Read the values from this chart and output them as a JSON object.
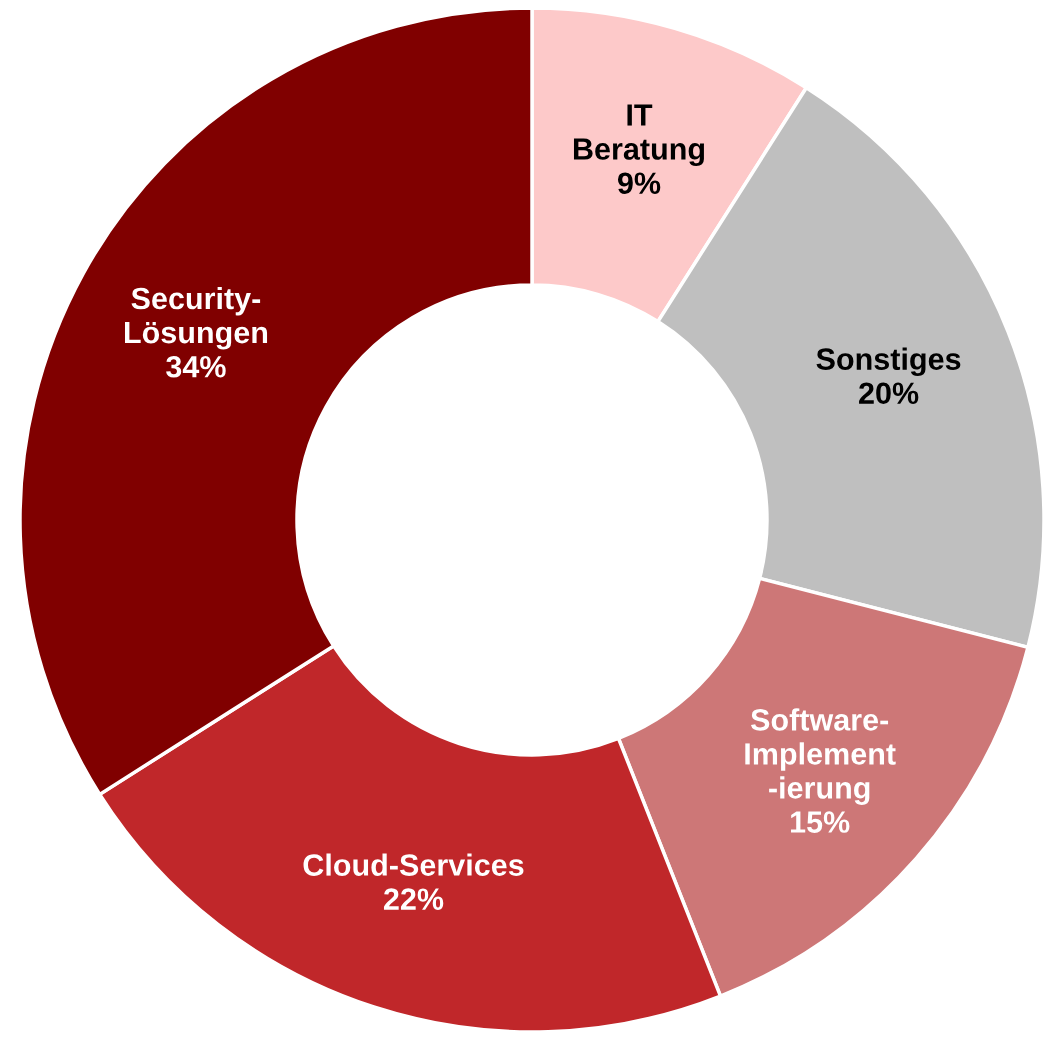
{
  "chart_data": {
    "type": "donut",
    "categories": [
      "IT\nBeratung",
      "Sonstiges",
      "Software-\nImplement\n-ierung",
      "Cloud-Services",
      "Security-\nLösungen"
    ],
    "values": [
      9,
      20,
      15,
      22,
      34
    ],
    "value_labels": [
      "9%",
      "20%",
      "15%",
      "22%",
      "34%"
    ],
    "colors": [
      "#fdc9c9",
      "#bfbfbf",
      "#cd7777",
      "#c0272a",
      "#800000"
    ]
  }
}
